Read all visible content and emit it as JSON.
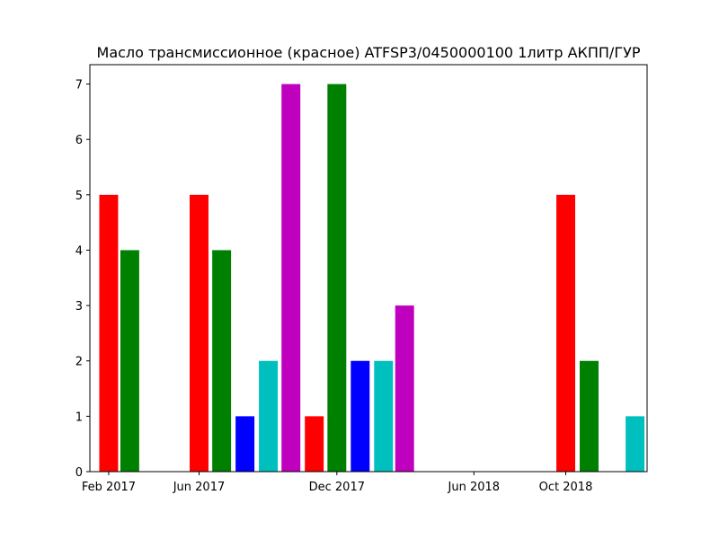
{
  "chart_data": {
    "type": "bar",
    "title": "Масло трансмиссионное (красное) ATFSP3/0450000100 1литр АКПП/ГУР",
    "xlabel": "",
    "ylabel": "",
    "ylim": [
      0,
      7.35
    ],
    "grid": false,
    "legend": "none",
    "x_axis_type": "date",
    "xlim": [
      "2017-01-07",
      "2019-01-17"
    ],
    "yticks": [
      0,
      1,
      2,
      3,
      4,
      5,
      6,
      7
    ],
    "xticks": [
      {
        "date": "2017-02-01",
        "label": "Feb 2017"
      },
      {
        "date": "2017-06-01",
        "label": "Jun 2017"
      },
      {
        "date": "2017-12-01",
        "label": "Dec 2017"
      },
      {
        "date": "2018-06-01",
        "label": "Jun 2018"
      },
      {
        "date": "2018-10-01",
        "label": "Oct 2018"
      }
    ],
    "bars": [
      {
        "date": "2017-02-01",
        "value": 5,
        "color": "#ff0000"
      },
      {
        "date": "2017-03-01",
        "value": 4,
        "color": "#008000"
      },
      {
        "date": "2017-06-01",
        "value": 5,
        "color": "#ff0000"
      },
      {
        "date": "2017-07-01",
        "value": 4,
        "color": "#008000"
      },
      {
        "date": "2017-08-01",
        "value": 1,
        "color": "#0000ff"
      },
      {
        "date": "2017-09-01",
        "value": 2,
        "color": "#00bfbf"
      },
      {
        "date": "2017-10-01",
        "value": 7,
        "color": "#bf00bf"
      },
      {
        "date": "2017-11-01",
        "value": 1,
        "color": "#ff0000"
      },
      {
        "date": "2017-12-01",
        "value": 7,
        "color": "#008000"
      },
      {
        "date": "2018-01-01",
        "value": 2,
        "color": "#0000ff"
      },
      {
        "date": "2018-02-01",
        "value": 2,
        "color": "#00bfbf"
      },
      {
        "date": "2018-03-01",
        "value": 3,
        "color": "#bf00bf"
      },
      {
        "date": "2018-10-01",
        "value": 5,
        "color": "#ff0000"
      },
      {
        "date": "2018-11-01",
        "value": 2,
        "color": "#008000"
      },
      {
        "date": "2019-01-01",
        "value": 1,
        "color": "#00bfbf"
      }
    ]
  }
}
